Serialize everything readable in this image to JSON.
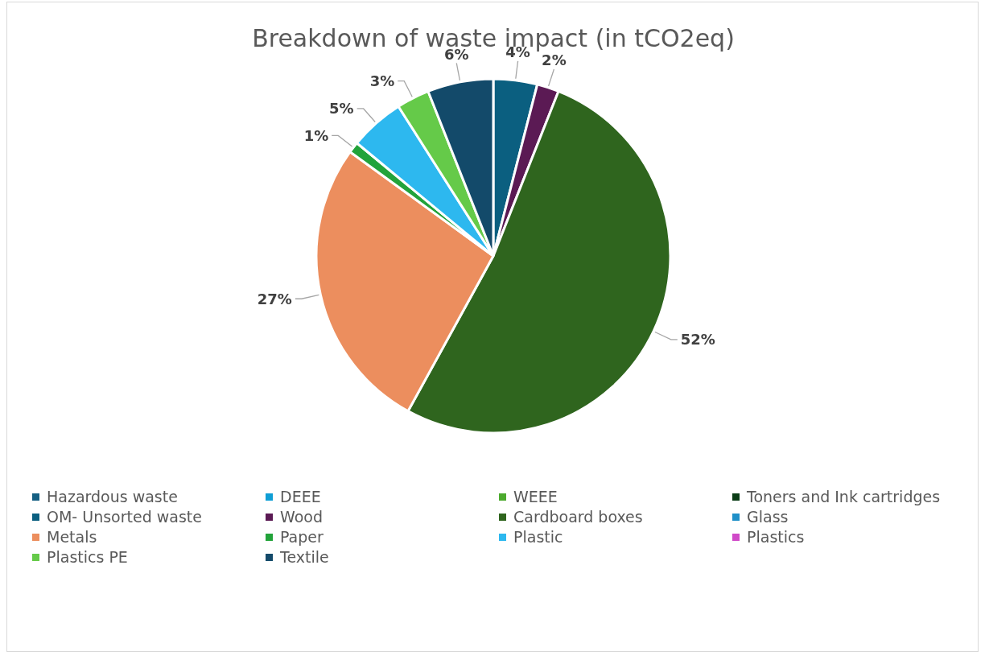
{
  "chart_data": {
    "type": "pie",
    "title": "Breakdown of waste impact (in tCO2eq)",
    "categories": [
      "Hazardous waste",
      "DEEE",
      "WEEE",
      "Toners and Ink cartridges",
      "OM- Unsorted waste",
      "Wood",
      "Cardboard boxes",
      "Glass",
      "Metals",
      "Paper",
      "Plastic",
      "Plastics",
      "Plastics PE",
      "Textile"
    ],
    "values": [
      0,
      0,
      0,
      0,
      4,
      2,
      52,
      0,
      27,
      1,
      5,
      0,
      3,
      6
    ],
    "colors": [
      "#155f82",
      "#0f9ed5",
      "#4caa2e",
      "#0b3d16",
      "#0b5f80",
      "#5b1a54",
      "#2f651e",
      "#2090c8",
      "#ec8e5e",
      "#22a33a",
      "#2db8ef",
      "#d04ac8",
      "#65ca49",
      "#134a6a"
    ],
    "value_labels": [
      null,
      null,
      null,
      null,
      "4%",
      "2%",
      "52%",
      null,
      "27%",
      "1%",
      "5%",
      null,
      "3%",
      "6%"
    ],
    "legend": "bottom"
  }
}
